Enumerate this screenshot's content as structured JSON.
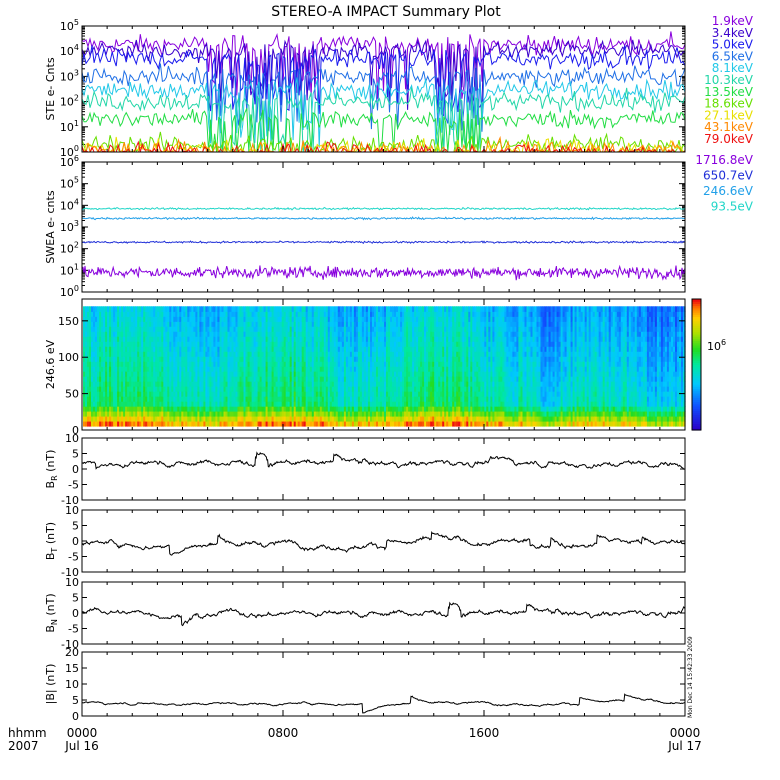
{
  "title": "STEREO-A IMPACT Summary Plot",
  "time_axis": {
    "row1_label": "hhmm",
    "row2_label": "2007",
    "ticks": [
      {
        "hours": 0,
        "hhmm": "0000",
        "date": "Jul 16"
      },
      {
        "hours": 8,
        "hhmm": "0800",
        "date": ""
      },
      {
        "hours": 16,
        "hhmm": "1600",
        "date": ""
      },
      {
        "hours": 24,
        "hhmm": "0000",
        "date": "Jul 17"
      }
    ],
    "range_hours": [
      0,
      24
    ]
  },
  "timestamp_note": "Mon Dec 14 15:42:33 2009",
  "colors": {
    "background": "#ffffff",
    "axes": "#000000",
    "title": "#000000"
  },
  "chart_data": [
    {
      "id": "ste",
      "type": "line",
      "ylabel": "STE e- Cnts",
      "yscale": "log",
      "ylim": [
        1,
        100000
      ],
      "ytick_labels": [
        "10^0",
        "10^1",
        "10^2",
        "10^3",
        "10^4",
        "10^5"
      ],
      "series": [
        {
          "name": "1.9keV",
          "color": "#8800dd",
          "level": 18000
        },
        {
          "name": "3.4keV",
          "color": "#3a00cc",
          "level": 10000
        },
        {
          "name": "5.0keV",
          "color": "#1a1aee",
          "level": 5000
        },
        {
          "name": "6.5keV",
          "color": "#1f6fe6",
          "level": 1000
        },
        {
          "name": "8.1keV",
          "color": "#22c8e8",
          "level": 300
        },
        {
          "name": "10.3keV",
          "color": "#22d6a8",
          "level": 100
        },
        {
          "name": "13.5keV",
          "color": "#22dd44",
          "level": 20
        },
        {
          "name": "18.6keV",
          "color": "#66e000",
          "level": 2
        },
        {
          "name": "27.1keV",
          "color": "#e8e000",
          "level": 1.3
        },
        {
          "name": "43.1keV",
          "color": "#ff8800",
          "level": 1.1
        },
        {
          "name": "79.0keV",
          "color": "#ee1111",
          "level": 1.0
        }
      ]
    },
    {
      "id": "swea",
      "type": "line",
      "ylabel": "SWEA e- cnts",
      "yscale": "log",
      "ylim": [
        1,
        1000000
      ],
      "ytick_labels": [
        "10^0",
        "10^1",
        "10^2",
        "10^3",
        "10^4",
        "10^5",
        "10^6"
      ],
      "series": [
        {
          "name": "1716.8eV",
          "color": "#8800dd",
          "level": 8
        },
        {
          "name": "650.7eV",
          "color": "#1f2fd8",
          "level": 200
        },
        {
          "name": "246.6eV",
          "color": "#22a0e8",
          "level": 2500
        },
        {
          "name": "93.5eV",
          "color": "#22d6c8",
          "level": 7000
        }
      ]
    },
    {
      "id": "pad",
      "type": "heatmap",
      "ylabel": "246.6 eV",
      "ylim": [
        0,
        180
      ],
      "yticks": [
        0,
        50,
        100,
        150
      ],
      "colorbar_label": "10^6"
    },
    {
      "id": "br",
      "type": "line",
      "ylabel": "B_R (nT)",
      "ylim": [
        -10,
        10
      ],
      "yticks": [
        -10,
        -5,
        0,
        5,
        10
      ],
      "mean": 2
    },
    {
      "id": "bt",
      "type": "line",
      "ylabel": "B_T (nT)",
      "ylim": [
        -10,
        10
      ],
      "yticks": [
        -10,
        -5,
        0,
        5,
        10
      ],
      "mean": -1
    },
    {
      "id": "bn",
      "type": "line",
      "ylabel": "B_N (nT)",
      "ylim": [
        -10,
        10
      ],
      "yticks": [
        -10,
        -5,
        0,
        5,
        10
      ],
      "mean": 0
    },
    {
      "id": "bmag",
      "type": "line",
      "ylabel": "|B| (nT)",
      "ylim": [
        0,
        20
      ],
      "yticks": [
        0,
        5,
        10,
        15,
        20
      ],
      "mean": 4
    }
  ]
}
